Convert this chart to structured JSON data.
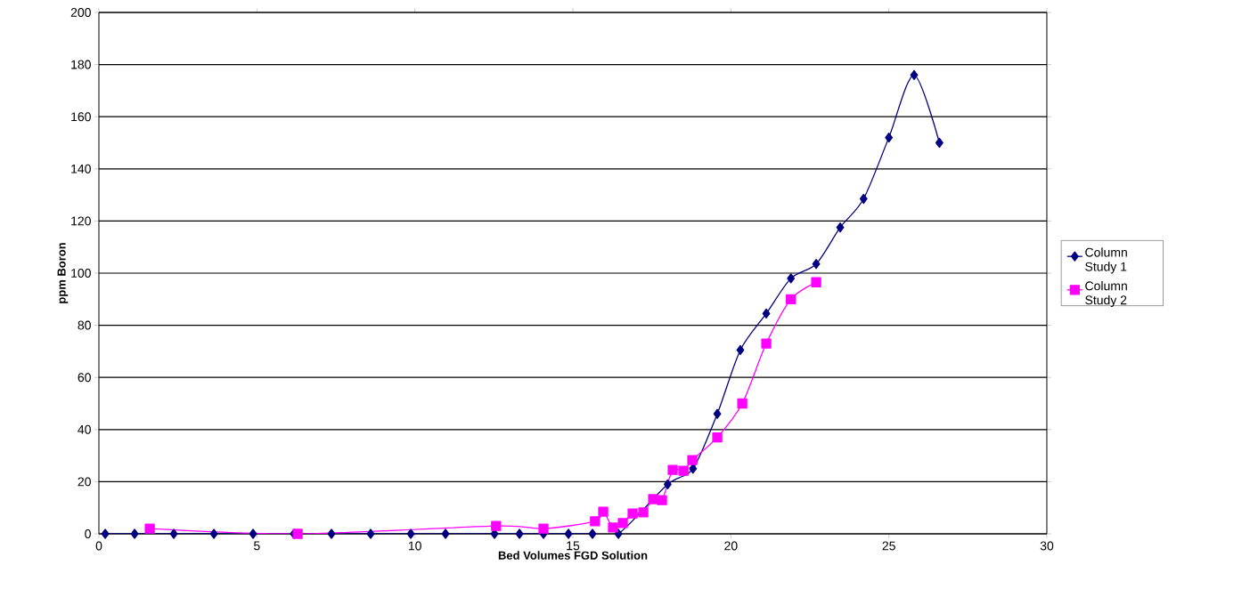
{
  "chart_data": {
    "type": "line",
    "xlabel": "Bed Volumes  FGD Solution",
    "ylabel": "ppm Boron",
    "xlim": [
      0,
      30
    ],
    "xticks": [
      0,
      5,
      10,
      15,
      20,
      25,
      30
    ],
    "ylim": [
      0,
      200
    ],
    "yticks": [
      0,
      20,
      40,
      60,
      80,
      100,
      120,
      140,
      160,
      180,
      200
    ],
    "grid": "y",
    "legend": "right",
    "line_style": "solid",
    "series": [
      {
        "name": "Column Study 1",
        "color": "#000080",
        "marker": "diamond",
        "x": [
          0.2,
          1.13,
          2.37,
          3.64,
          4.88,
          6.17,
          7.36,
          8.6,
          9.87,
          10.97,
          12.52,
          13.31,
          14.07,
          14.86,
          15.62,
          16.44,
          18.0,
          18.8,
          19.57,
          20.3,
          21.12,
          21.9,
          22.7,
          23.46,
          24.2,
          25.0,
          25.8,
          26.6
        ],
        "values": [
          0,
          0,
          0,
          0,
          0,
          0,
          0,
          0,
          0,
          0,
          0,
          0,
          0,
          0,
          0,
          0,
          19,
          25,
          46,
          70.5,
          84.5,
          98,
          103.5,
          117.5,
          128.5,
          152,
          176,
          150
        ]
      },
      {
        "name": "Column Study 2",
        "color": "#ff00ff",
        "marker": "square",
        "x": [
          1.61,
          6.29,
          12.57,
          14.07,
          15.7,
          15.96,
          16.27,
          16.58,
          16.89,
          17.23,
          17.54,
          17.82,
          18.16,
          18.5,
          18.78,
          19.57,
          20.36,
          21.12,
          21.9,
          22.7
        ],
        "values": [
          2,
          0,
          3,
          2,
          4.8,
          8.5,
          2.4,
          4.1,
          7.8,
          8.2,
          13.3,
          12.9,
          24.5,
          24.2,
          28.3,
          37,
          50,
          73,
          90,
          96.5
        ]
      }
    ]
  }
}
